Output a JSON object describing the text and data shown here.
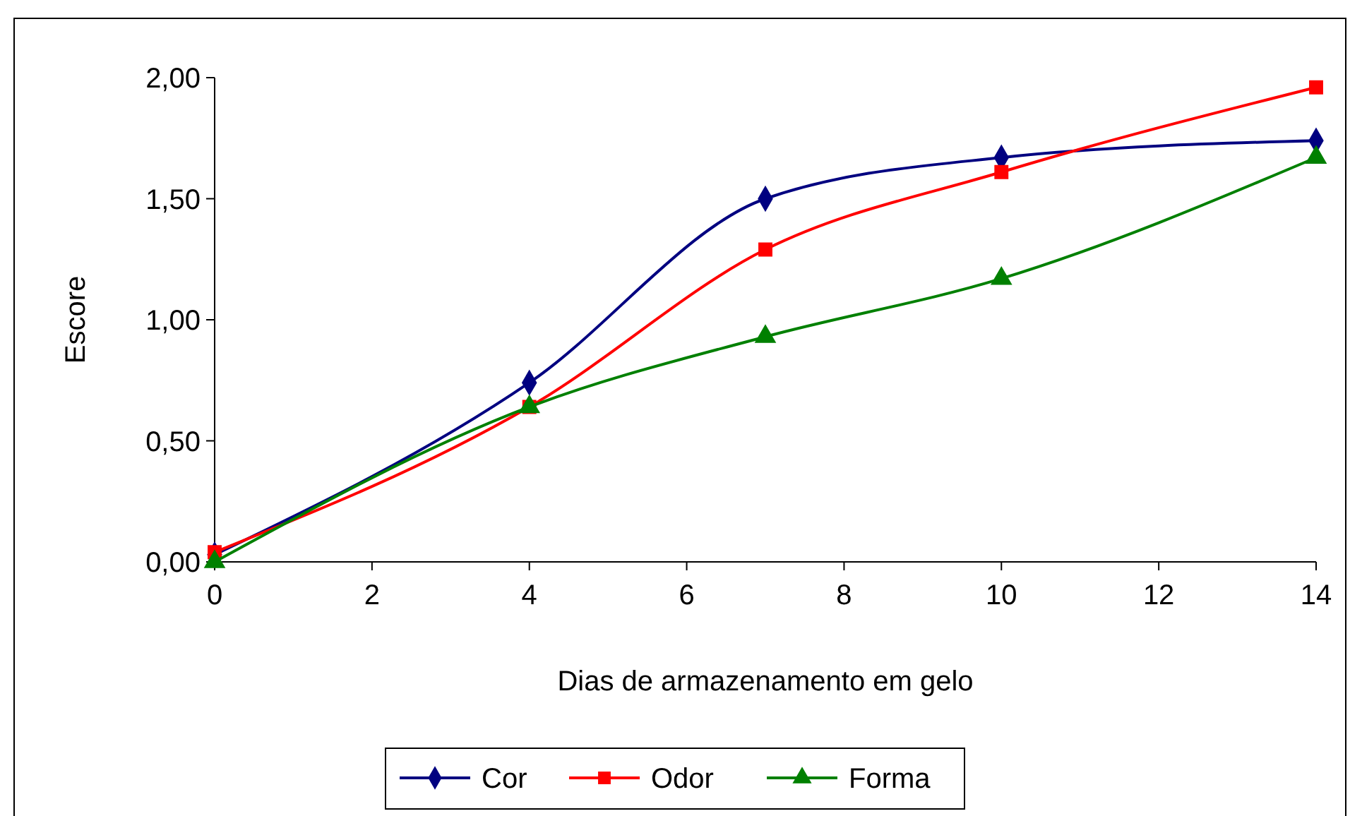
{
  "chart_data": {
    "type": "line",
    "xlabel": "Dias de armazenamento em gelo",
    "ylabel": "Escore",
    "x": [
      0,
      4,
      7,
      10,
      14
    ],
    "series": [
      {
        "name": "Cor",
        "color": "#000080",
        "marker": "diamond",
        "values": [
          0.03,
          0.74,
          1.5,
          1.67,
          1.74
        ]
      },
      {
        "name": "Odor",
        "color": "#ff0000",
        "marker": "square",
        "values": [
          0.04,
          0.64,
          1.29,
          1.61,
          1.96
        ]
      },
      {
        "name": "Forma",
        "color": "#008000",
        "marker": "triangle",
        "values": [
          0,
          0.64,
          0.93,
          1.17,
          1.67
        ]
      }
    ],
    "xlim": [
      0,
      14
    ],
    "xticks": [
      0,
      2,
      4,
      6,
      8,
      10,
      12,
      14
    ],
    "ylim": [
      0,
      2
    ],
    "yticks": [
      {
        "value": 0,
        "label": "0,00"
      },
      {
        "value": 0.5,
        "label": "0,50"
      },
      {
        "value": 1,
        "label": "1,00"
      },
      {
        "value": 1.5,
        "label": "1,50"
      },
      {
        "value": 2,
        "label": "2,00"
      }
    ],
    "grid": false,
    "legend": "bottom",
    "line_style": "solid"
  }
}
